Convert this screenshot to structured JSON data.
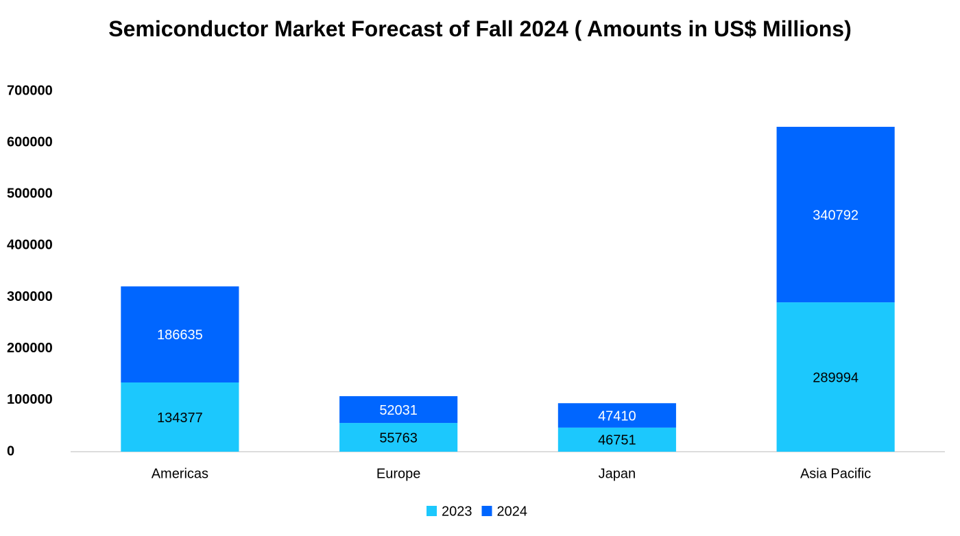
{
  "chart_data": {
    "type": "stacked_bar",
    "title": "Semiconductor Market Forecast of Fall 2024 ( Amounts in US$ Millions)",
    "categories": [
      "Americas",
      "Europe",
      "Japan",
      "Asia Pacific"
    ],
    "series": [
      {
        "name": "2023",
        "color": "#1cc8fd",
        "values": [
          134377,
          55763,
          46751,
          289994
        ]
      },
      {
        "name": "2024",
        "color": "#0066ff",
        "values": [
          186635,
          52031,
          47410,
          340792
        ]
      }
    ],
    "ylim": [
      0,
      700000
    ],
    "yticks": [
      0,
      100000,
      200000,
      300000,
      400000,
      500000,
      600000,
      700000
    ],
    "legend": "bottom"
  }
}
